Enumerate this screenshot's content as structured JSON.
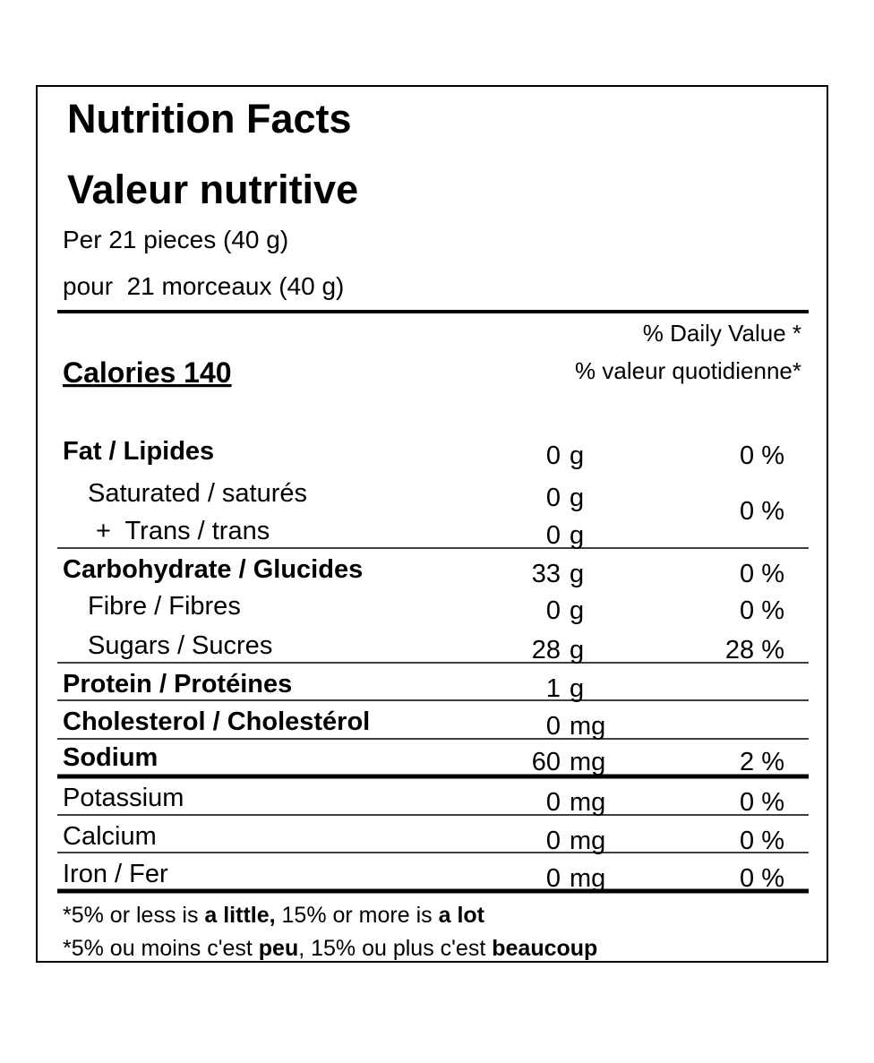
{
  "header": {
    "title": "Nutrition Facts",
    "title_fr": "Valeur nutritive",
    "serving": "Per 21 pieces (40 g)",
    "serving_fr": "pour  21 morceaux (40 g)"
  },
  "daily_value_heading": "% Daily Value *",
  "daily_value_heading_fr": "% valeur quotidienne*",
  "calories": "Calories 140",
  "rows": [
    {
      "name": "Fat / Lipides",
      "amount": 0,
      "unit": "g",
      "dv": "0 %"
    },
    {
      "name": "Saturated / saturés",
      "amount": 0,
      "unit": "g",
      "dv": "0 %"
    },
    {
      "name": "+  Trans / trans",
      "amount": 0,
      "unit": "g"
    },
    {
      "name": "Carbohydrate / Glucides",
      "amount": 33,
      "unit": "g",
      "dv": "0 %"
    },
    {
      "name": "Fibre / Fibres",
      "amount": 0,
      "unit": "g",
      "dv": "0 %"
    },
    {
      "name": "Sugars / Sucres",
      "amount": 28,
      "unit": "g",
      "dv": "28 %"
    },
    {
      "name": "Protein / Protéines",
      "amount": 1,
      "unit": "g"
    },
    {
      "name": "Cholesterol / Cholestérol",
      "amount": 0,
      "unit": "mg"
    },
    {
      "name": "Sodium",
      "amount": 60,
      "unit": "mg",
      "dv": "2 %"
    },
    {
      "name": "Potassium",
      "amount": 0,
      "unit": "mg",
      "dv": "0 %"
    },
    {
      "name": "Calcium",
      "amount": 0,
      "unit": "mg",
      "dv": "0 %"
    },
    {
      "name": "Iron / Fer",
      "amount": 0,
      "unit": "mg",
      "dv": "0 %"
    }
  ],
  "footnote": [
    [
      "*5% or less is ",
      "a little,",
      " 15% or more is ",
      "a lot"
    ],
    [
      "*5% ou moins c'est ",
      "peu",
      ", 15% ou plus c'est ",
      "beaucoup"
    ]
  ]
}
